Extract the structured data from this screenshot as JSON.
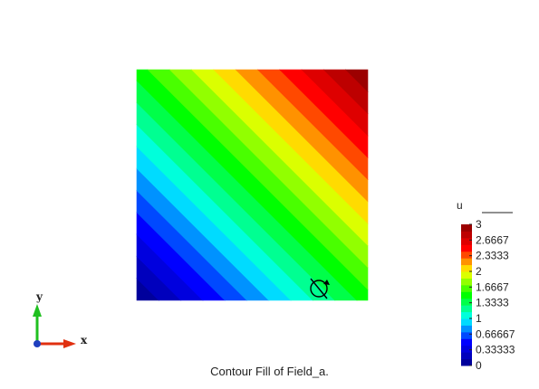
{
  "plot": {
    "caption": "Contour Fill of Field_a.",
    "domain": {
      "x": [
        0,
        1
      ],
      "y": [
        0,
        1
      ]
    },
    "field_formula": "u = 1.5 * (x + y)",
    "contour_levels": 21
  },
  "colorbar": {
    "title": "u",
    "range": [
      0,
      3
    ],
    "tick_labels": [
      "3",
      "2.6667",
      "2.3333",
      "2",
      "1.6667",
      "1.3333",
      "1",
      "0.66667",
      "0.33333",
      "0"
    ],
    "tick_values": [
      3,
      2.6667,
      2.3333,
      2,
      1.6667,
      1.3333,
      1,
      0.66667,
      0.33333,
      0
    ],
    "colormap": [
      "#00008b",
      "#0000ff",
      "#00ffff",
      "#00ff00",
      "#ffff00",
      "#ff0000",
      "#8b0000"
    ]
  },
  "triad": {
    "x_label": "x",
    "y_label": "y",
    "x_color": "#e03010",
    "y_color": "#20c020",
    "z_color": "#1f3fbf"
  },
  "cursor": {
    "icon": "rotate-cursor-icon"
  }
}
